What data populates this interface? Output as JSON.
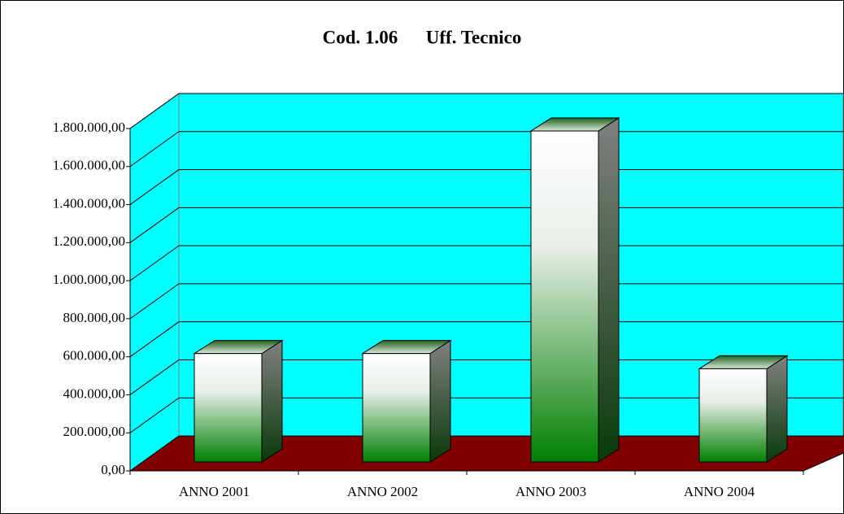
{
  "chart_data": {
    "type": "bar3d",
    "title": "Cod. 1.06      Uff. Tecnico",
    "categories": [
      "ANNO 2001",
      "ANNO 2002",
      "ANNO 2003",
      "ANNO 2004"
    ],
    "values": [
      570000,
      570000,
      1740000,
      490000
    ],
    "color": "#008000",
    "wall_color": "#00ffff",
    "floor_color": "#800000",
    "ylim": [
      0,
      1800000
    ],
    "yticks": [
      {
        "value": 0,
        "label": "0,00"
      },
      {
        "value": 200000,
        "label": "200.000,00"
      },
      {
        "value": 400000,
        "label": "400.000,00"
      },
      {
        "value": 600000,
        "label": "600.000,00"
      },
      {
        "value": 800000,
        "label": "800.000,00"
      },
      {
        "value": 1000000,
        "label": "1.000.000,00"
      },
      {
        "value": 1200000,
        "label": "1.200.000,00"
      },
      {
        "value": 1400000,
        "label": "1.400.000,00"
      },
      {
        "value": 1600000,
        "label": "1.600.000,00"
      },
      {
        "value": 1800000,
        "label": "1.800.000,00"
      }
    ],
    "grid": true
  }
}
